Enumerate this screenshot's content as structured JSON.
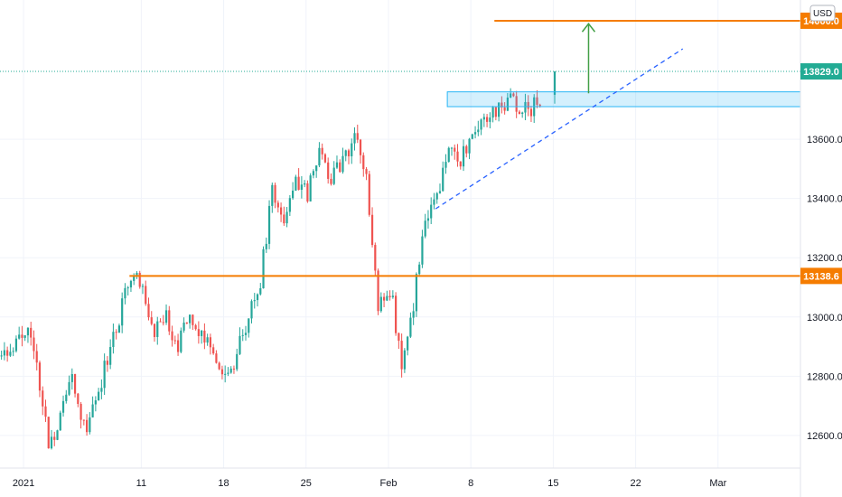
{
  "chart_data": {
    "type": "candlestick",
    "currency": "USD",
    "ylim": [
      12490,
      14070
    ],
    "y_ticks": [
      12600,
      12800,
      13000,
      13200,
      13400,
      13600
    ],
    "y_tick_labels": [
      "12600.0",
      "12800.0",
      "13000.0",
      "13200.0",
      "13400.0",
      "13600.0"
    ],
    "x_range": [
      "2020-12-30",
      "2021-03-08"
    ],
    "x_ticks": [
      {
        "date": "2021-01-01",
        "label": "2021"
      },
      {
        "date": "2021-01-11",
        "label": "11"
      },
      {
        "date": "2021-01-18",
        "label": "18"
      },
      {
        "date": "2021-01-25",
        "label": "25"
      },
      {
        "date": "2021-02-01",
        "label": "Feb"
      },
      {
        "date": "2021-02-08",
        "label": "8"
      },
      {
        "date": "2021-02-15",
        "label": "15"
      },
      {
        "date": "2021-02-22",
        "label": "22"
      },
      {
        "date": "2021-03-01",
        "label": "Mar"
      }
    ],
    "levels": [
      {
        "value": 14000.0,
        "label": "14000.0",
        "color": "#f57c00",
        "start": "2021-02-10"
      },
      {
        "value": 13138.6,
        "label": "13138.6",
        "color": "#f57c00",
        "start": "2021-01-10"
      }
    ],
    "last_price": {
      "value": 13829.0,
      "label": "13829.0",
      "color": "#22ab94"
    },
    "resistance_zone": {
      "y_low": 13710,
      "y_high": 13760,
      "start": "2021-02-06",
      "color": "#29b6f6"
    },
    "trendline": {
      "from": [
        "2021-02-05",
        13365
      ],
      "to": [
        "2021-02-26",
        13905
      ],
      "color": "#2962ff"
    },
    "target_arrow": {
      "date": "2021-02-18",
      "from": 13755,
      "to": 13990,
      "color": "#43a047"
    },
    "up_color": "#26a69a",
    "down_color": "#ef5350",
    "anchors": [
      [
        "2020-12-30",
        12870
      ],
      [
        "2021-01-01",
        12960
      ],
      [
        "2021-01-02",
        12850
      ],
      [
        "2021-01-03",
        12560
      ],
      [
        "2021-01-04",
        12670
      ],
      [
        "2021-01-05",
        12780
      ],
      [
        "2021-01-06",
        12620
      ],
      [
        "2021-01-07",
        12720
      ],
      [
        "2021-01-09",
        13000
      ],
      [
        "2021-01-10",
        13130
      ],
      [
        "2021-01-11",
        13100
      ],
      [
        "2021-01-12",
        12960
      ],
      [
        "2021-01-13",
        13000
      ],
      [
        "2021-01-14",
        12890
      ],
      [
        "2021-01-15",
        13010
      ],
      [
        "2021-01-16",
        12930
      ],
      [
        "2021-01-18",
        12800
      ],
      [
        "2021-01-19",
        12870
      ],
      [
        "2021-01-20",
        13000
      ],
      [
        "2021-01-21",
        13130
      ],
      [
        "2021-01-22",
        13420
      ],
      [
        "2021-01-23",
        13350
      ],
      [
        "2021-01-24",
        13460
      ],
      [
        "2021-01-25",
        13420
      ],
      [
        "2021-01-26",
        13570
      ],
      [
        "2021-01-27",
        13470
      ],
      [
        "2021-01-28",
        13540
      ],
      [
        "2021-01-29",
        13610
      ],
      [
        "2021-01-30",
        13480
      ],
      [
        "2021-01-31",
        13030
      ],
      [
        "2021-02-01",
        13100
      ],
      [
        "2021-02-02",
        12850
      ],
      [
        "2021-02-03",
        13050
      ],
      [
        "2021-02-04",
        13300
      ],
      [
        "2021-02-05",
        13400
      ],
      [
        "2021-02-06",
        13600
      ],
      [
        "2021-02-07",
        13520
      ],
      [
        "2021-02-08",
        13620
      ],
      [
        "2021-02-09",
        13690
      ],
      [
        "2021-02-10",
        13690
      ],
      [
        "2021-02-11",
        13740
      ],
      [
        "2021-02-12",
        13700
      ],
      [
        "2021-02-13",
        13700
      ],
      [
        "2021-02-14",
        13740
      ]
    ],
    "final_candle": {
      "date": "2021-02-15",
      "open": 13750,
      "high": 13829,
      "low": 13720,
      "close": 13829
    }
  }
}
